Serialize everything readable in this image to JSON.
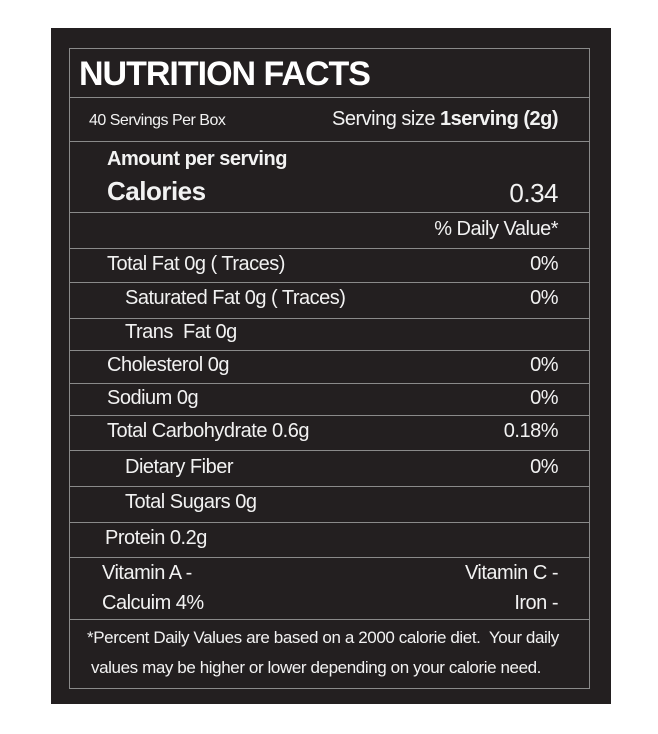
{
  "label": {
    "title": "NUTRITION FACTS",
    "servings_per_box": "40 Servings Per Box",
    "serving_size_label": "Serving size",
    "serving_size_value": "1serving (2g)",
    "amount_per_serving": "Amount per serving",
    "calories_label": "Calories",
    "calories_value": "0.34",
    "daily_value_header": "% Daily Value*",
    "nutrients": [
      {
        "name": "Total Fat 0g ( Traces)",
        "dv": "0%"
      },
      {
        "name": "Saturated Fat 0g ( Traces)",
        "dv": "0%"
      },
      {
        "name": "Trans  Fat 0g",
        "dv": ""
      },
      {
        "name": "Cholesterol 0g",
        "dv": "0%"
      },
      {
        "name": "Sodium 0g",
        "dv": "0%"
      },
      {
        "name": "Total Carbohydrate 0.6g",
        "dv": "0.18%"
      },
      {
        "name": "Dietary Fiber",
        "dv": "0%"
      },
      {
        "name": "Total Sugars 0g",
        "dv": ""
      },
      {
        "name": "Protein 0.2g",
        "dv": ""
      }
    ],
    "vitamins": {
      "vitamin_a": "Vitamin A -",
      "vitamin_c": "Vitamin C -",
      "calcium": "Calcuim 4%",
      "iron": "Iron -"
    },
    "footnote_line1": "*Percent Daily Values are based on a 2000 calorie diet.  Your daily",
    "footnote_line2": "values may be higher or lower depending on your calorie need."
  },
  "colors": {
    "background": "#231f20",
    "text": "#f2f2f2",
    "rule": "#8a8a8a"
  }
}
